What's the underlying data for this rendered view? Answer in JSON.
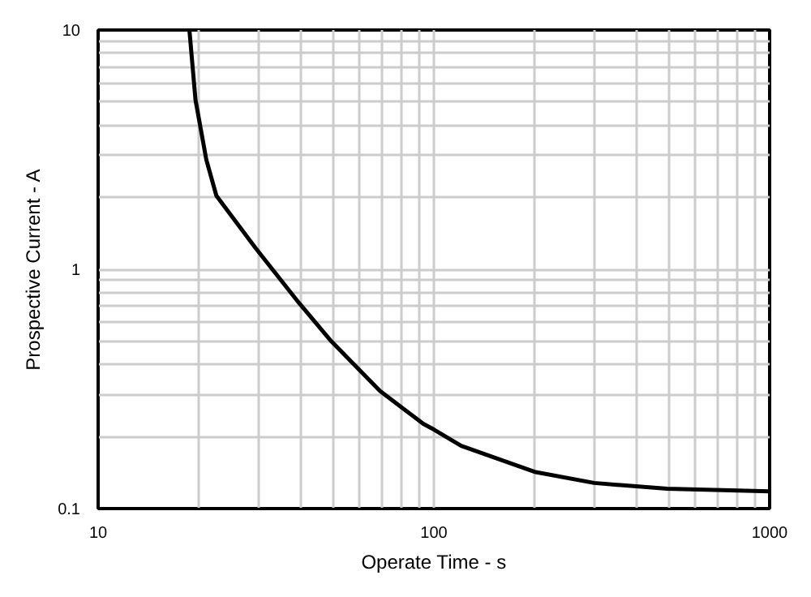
{
  "chart_data": {
    "type": "line",
    "xlabel": "Operate Time - s",
    "ylabel": "Prospective Current - A",
    "log": "xy",
    "grid": true,
    "marker": "none",
    "line_style": "solid",
    "xlim": [
      10,
      1000
    ],
    "ylim": [
      0.1,
      10
    ],
    "xticks": [
      10,
      {
        "value": 20,
        "label": null
      },
      {
        "value": 30,
        "label": null
      },
      {
        "value": 40,
        "label": null
      },
      {
        "value": 50,
        "label": null
      },
      {
        "value": 60,
        "label": null
      },
      {
        "value": 70,
        "label": null
      },
      {
        "value": 80,
        "label": null
      },
      {
        "value": 90,
        "label": null
      },
      100,
      {
        "value": 200,
        "label": null
      },
      {
        "value": 300,
        "label": null
      },
      {
        "value": 400,
        "label": null
      },
      {
        "value": 500,
        "label": null
      },
      {
        "value": 600,
        "label": null
      },
      {
        "value": 700,
        "label": null
      },
      {
        "value": 800,
        "label": null
      },
      {
        "value": 900,
        "label": null
      },
      1000
    ],
    "yticks": [
      0.1,
      {
        "value": 0.2,
        "label": null
      },
      {
        "value": 0.3,
        "label": null
      },
      {
        "value": 0.4,
        "label": null
      },
      {
        "value": 0.5,
        "label": null
      },
      {
        "value": 0.6,
        "label": null
      },
      {
        "value": 0.7,
        "label": null
      },
      {
        "value": 0.8,
        "label": null
      },
      {
        "value": 0.9,
        "label": null
      },
      1,
      {
        "value": 2,
        "label": null
      },
      {
        "value": 3,
        "label": null
      },
      {
        "value": 4,
        "label": null
      },
      {
        "value": 5,
        "label": null
      },
      {
        "value": 6,
        "label": null
      },
      {
        "value": 7,
        "label": null
      },
      {
        "value": 8,
        "label": null
      },
      {
        "value": 9,
        "label": null
      },
      10
    ],
    "series": [
      {
        "color": "#000000",
        "x": [
          18.7,
          19.5,
          21.0,
          22.5,
          29.4,
          39.6,
          49.5,
          69.1,
          93,
          100,
          120.6,
          201,
          300,
          495,
          1000
        ],
        "values": [
          10,
          5.1,
          2.87,
          2.03,
          1.23,
          0.725,
          0.5,
          0.31,
          0.226,
          0.214,
          0.183,
          0.142,
          0.128,
          0.121,
          0.118
        ]
      }
    ]
  }
}
